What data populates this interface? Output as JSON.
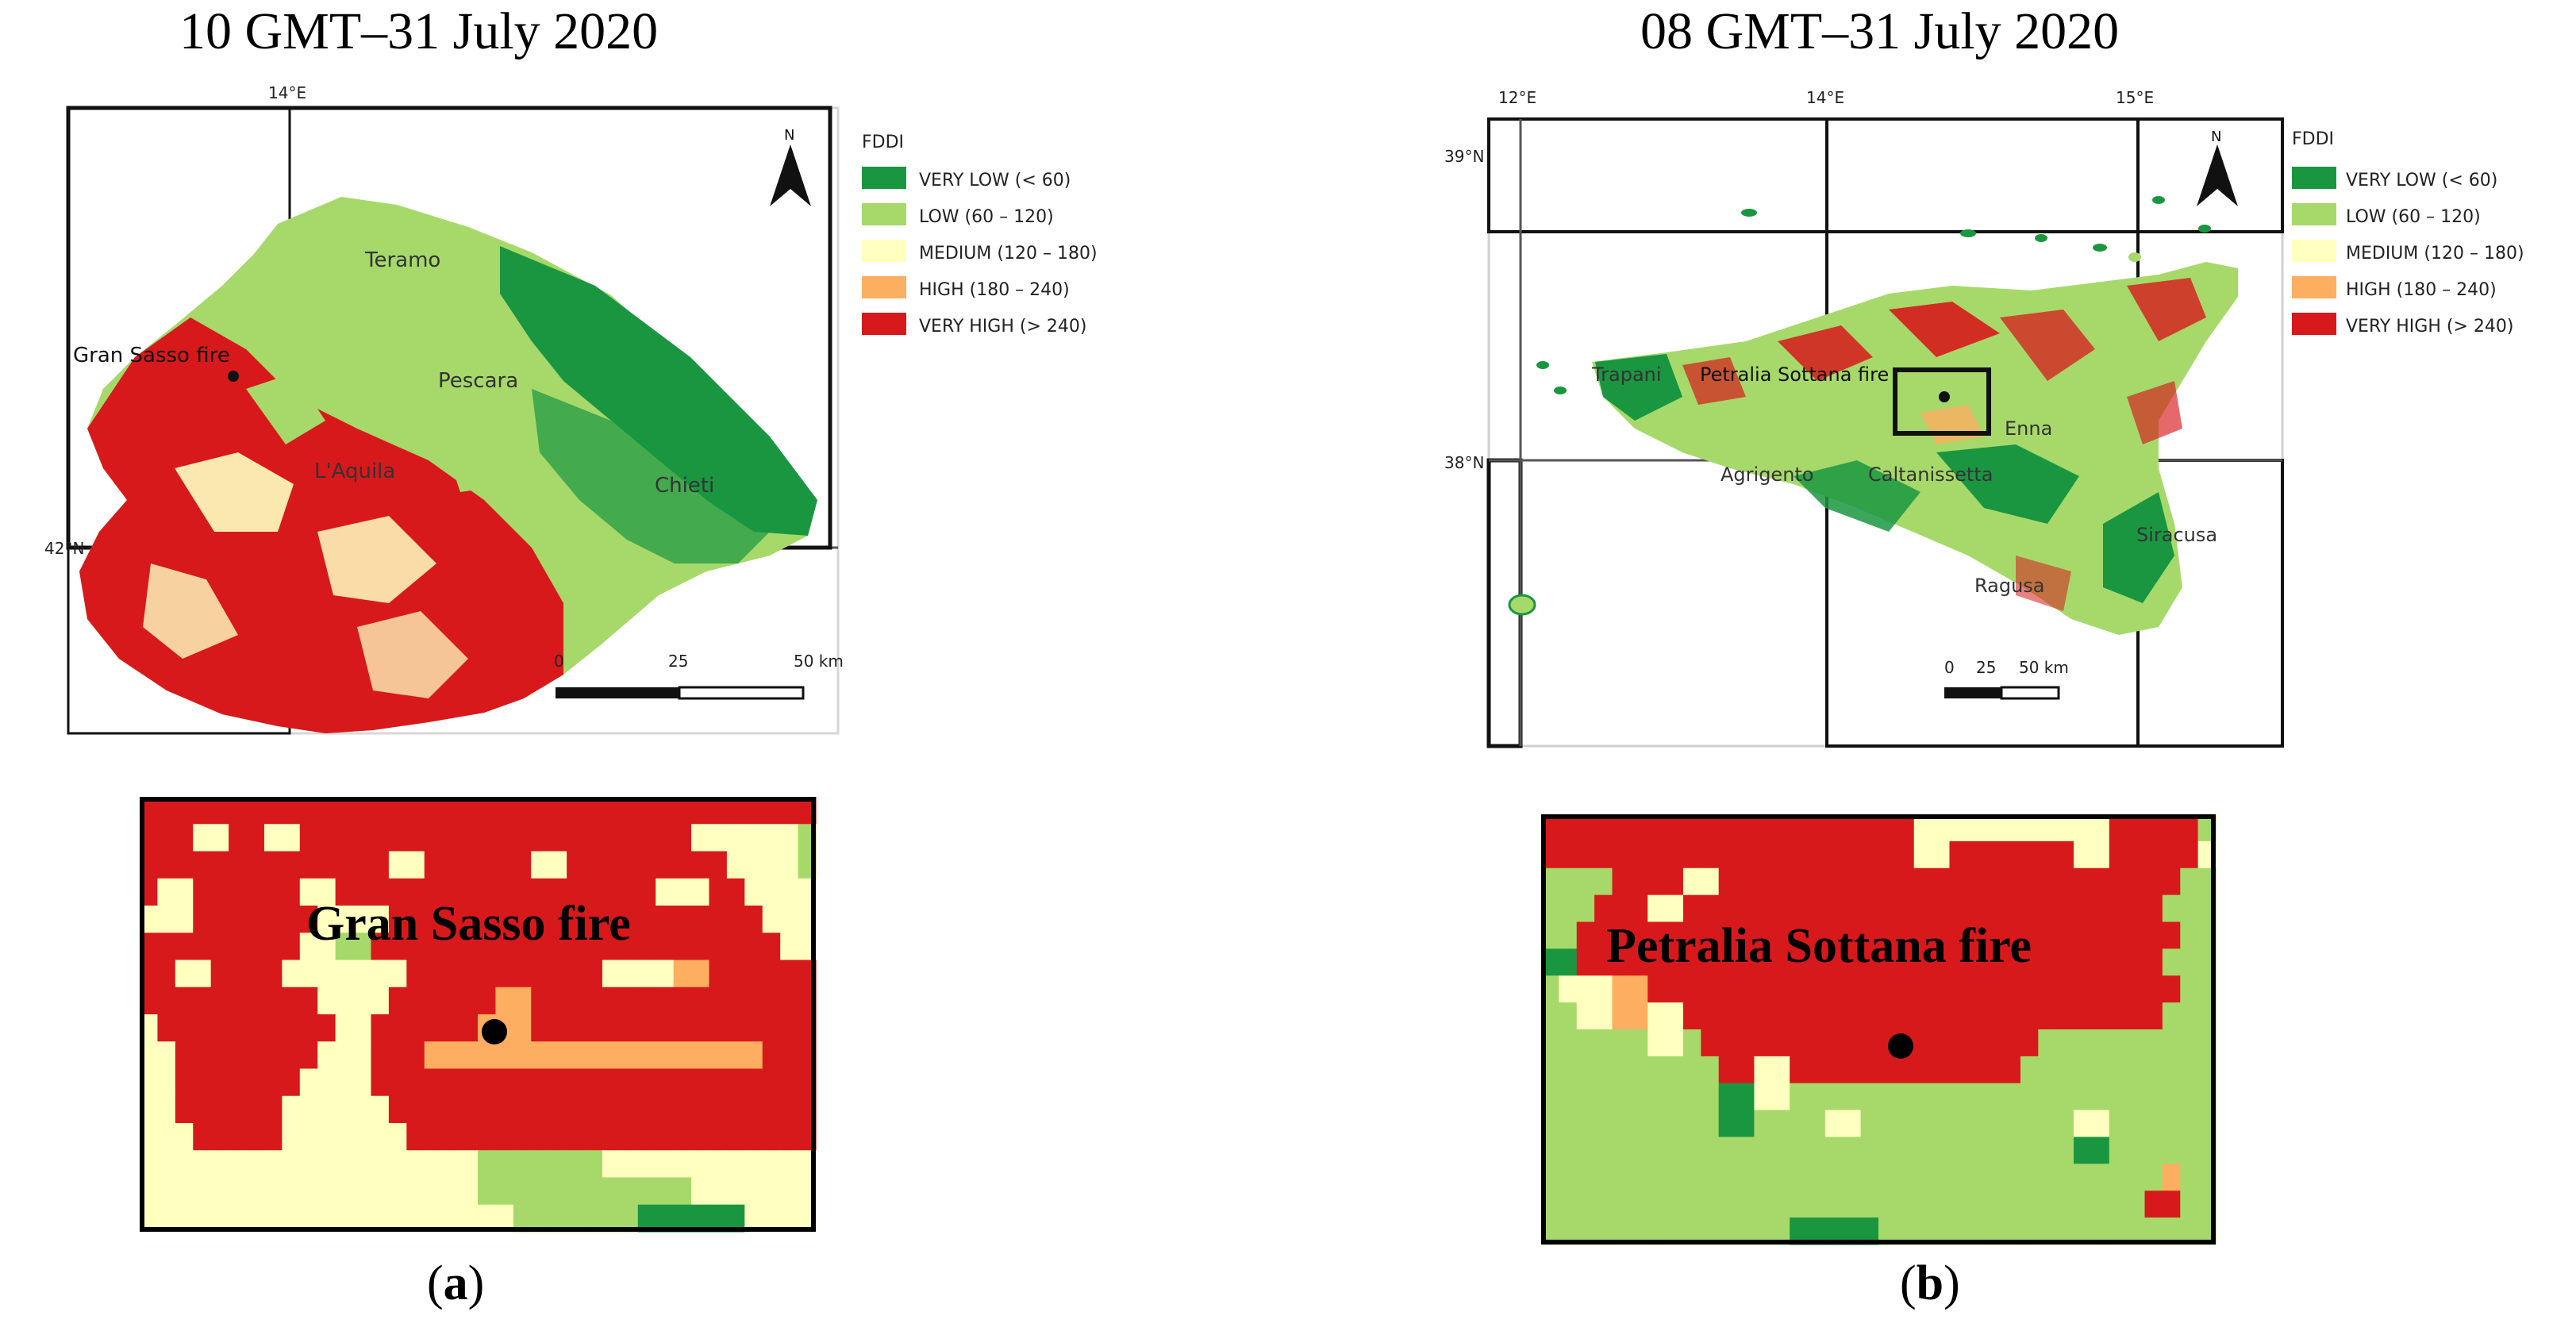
{
  "panels": {
    "a": {
      "title": "10 GMT–31 July 2020",
      "caption_letter": "a",
      "map": {
        "lon_label": "14°E",
        "lat_label": "42°N",
        "north_label": "N",
        "fire_label": "Gran Sasso fire",
        "places": [
          "Teramo",
          "Pescara",
          "L'Aquila",
          "Chieti"
        ],
        "scale_labels": [
          "0",
          "25",
          "50 km"
        ]
      },
      "zoom": {
        "label": "Gran Sasso fire",
        "grid": [
          "RRRRRRRRRRRRRRRRRRRRRRRRRRRRRRRRRRRRRR",
          "RRRYYRRYYRRRRRRRRRRRRRRRRRRRRRRYYYYYYL",
          "RRRRRRRRRRRRRRYYRRRRRRYYRRRRRRRRRYYYYL",
          "RYYRRRRRRYYRRRRRRRRRRRRRRRRRRYYYRRYYYY",
          "YYYRRRRRRRYYYYRRRRRRRRRRRRRRRRRRRRRYYY",
          "RRRRRRRRRYYLLRRRRRRRRRRRRRRRRRRRRRRRYY",
          "RRYYRRRRYYYYYYYRRRRRRRRRRRYYYYOORRRRRR",
          "RRRRRRRRRRYYYYRRRRRROORRRRRRRRRRRRRRRR",
          "YRRRRRRRRRRYYRRRRRROOORRRRRRRRRRRRRRRR",
          "YYRRRRRRRRYYYRRROOOOOOOOOOOOOOOOOOORRR",
          "YYRRRRRRRYYYYRRRRRRRRRRRRRRRRRRRRRRRRR",
          "YYRRRRRRYYYYYYRRRRRRRRRRRRRRRRRRRRRRRR",
          "YYYRRRRRYYYYYYYRRRRRRRRRRRRRRRRRRRRRRR",
          "YYYYYYYYYYYYYYYYYYYLLLLLLLYYYYYYYYYYYY",
          "YYYYYYYYYYYYYYYYYYYLLLLLLLLLLLLYYYYYYY",
          "YYYYYYYYYYYYYYYYYYYYYLLLLLLLDDDDDDYYYY"
        ]
      }
    },
    "b": {
      "title": "08 GMT–31 July 2020",
      "caption_letter": "b",
      "map": {
        "lon_labels": [
          "12°E",
          "14°E",
          "15°E"
        ],
        "lat_labels": [
          "39°N",
          "38°N"
        ],
        "north_label": "N",
        "fire_label": "Petralia Sottana fire",
        "places": [
          "Trapani",
          "Agrigento",
          "Caltanissetta",
          "Enna",
          "Siracusa",
          "Ragusa"
        ],
        "scale_labels": [
          "0",
          "25",
          "50 km"
        ]
      },
      "zoom": {
        "label": "Petralia Sottana fire",
        "grid": [
          "RRRRRRRRRRRRRRRRRRRRRYYYYYYYYYYYRRRRRL",
          "RRRRRRRRRRRRRRRRRRRRRYYRRRRRRRYYRRRRRY",
          "LLLLRRRRYYRRRRRRRRRRRRRRRRRRRRRRRRRRLL",
          "LLLRRRYYRRRRRRRRRRRRRRRRRRRRRRRRRRRLLL",
          "LLRRRRRRRRRRRRRRRRRRRRRRRRRRRRRRRRRRLL",
          "DDRRRRRRRRRRRRRRRRRRRRRRRRRRRRRRRRRLLL",
          "LYYYOORRRRRRRRRRRRRRRRRRRRRRRRRRRRRRLL",
          "LLYYOOYYRRRRRRRRRRRRRRRRRRRRRRRRRRRLLL",
          "LLLLLLYYLRRRRRRRRRRRRRRRRRRRLLLLLLLLLL",
          "LLLLLLLLLLRRYYRRRRRRRRRRRRRLLLLLLLLLLL",
          "LLLLLLLLLLDDYYLLLLLLLLLLLLLLLLLLLLLLLL",
          "LLLLLLLLLLDDLLLLYYLLLLLLLLLLLLYYLLLLLL",
          "LLLLLLLLLLLLLLLLLLLLLLLLLLLLLLDDLLLLLL",
          "LLLLLLLLLLLLLLLLLLLLLLLLLLLLLLLLLLLOLL",
          "LLLLLLLLLLLLLLLLLLLLLLLLLLLLLLLLLLRRLL",
          "LLLLLLLLLLLLLLDDDDDLLLLLLLLLLLLLLLLLLL"
        ]
      }
    }
  },
  "legend": {
    "title": "FDDI",
    "classes": [
      {
        "label": "VERY LOW (< 60)",
        "color": "#1a9641"
      },
      {
        "label": "LOW (60 – 120)",
        "color": "#a6d96a"
      },
      {
        "label": "MEDIUM (120 – 180)",
        "color": "#ffffc0"
      },
      {
        "label": "HIGH (180 – 240)",
        "color": "#fdae61"
      },
      {
        "label": "VERY HIGH (> 240)",
        "color": "#d7191c"
      }
    ]
  },
  "colors": {
    "very_low": "#1a9641",
    "low": "#a6d96a",
    "medium": "#ffffc0",
    "high": "#fdae61",
    "very_high": "#d7191c"
  }
}
